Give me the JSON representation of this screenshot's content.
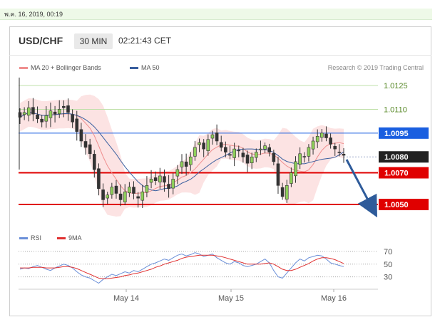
{
  "date_bar": "พ.ค. 16, 2019, 00:19",
  "header": {
    "symbol": "USD/CHF",
    "timeframe": "30 MIN",
    "time": "02:21:43 CET"
  },
  "legend": [
    {
      "label": "MA 20 + Bollinger Bands",
      "color": "#ef8f8f"
    },
    {
      "label": "MA 50",
      "color": "#3a5f9f"
    }
  ],
  "credit": "Research © 2019 Trading Central",
  "rsi_legend": [
    {
      "label": "RSI",
      "color": "#6a8fd8"
    },
    {
      "label": "9MA",
      "color": "#e03030"
    }
  ],
  "chart_data": {
    "type": "candlestick",
    "x_tick_labels": [
      "May 14",
      "May 15",
      "May 16"
    ],
    "price_levels": [
      {
        "value": 1.0125,
        "label": "1.0125",
        "kind": "thin-green"
      },
      {
        "value": 1.011,
        "label": "1.0110",
        "kind": "thin-green"
      },
      {
        "value": 1.0095,
        "label": "1.0095",
        "kind": "resistance",
        "color": "#1a5fe0"
      },
      {
        "value": 1.008,
        "label": "1.0080",
        "kind": "current",
        "color": "#222222"
      },
      {
        "value": 1.007,
        "label": "1.0070",
        "kind": "support",
        "color": "#e00000"
      },
      {
        "value": 1.005,
        "label": "1.0050",
        "kind": "support",
        "color": "#e00000"
      }
    ],
    "price_range": [
      1.0037,
      1.0134
    ],
    "price_path": [
      1.0105,
      1.0108,
      1.0111,
      1.0107,
      1.0104,
      1.0102,
      1.0106,
      1.0109,
      1.0107,
      1.011,
      1.0111,
      1.0108,
      1.0102,
      1.0096,
      1.009,
      1.0086,
      1.0082,
      1.0072,
      1.006,
      1.0053,
      1.0056,
      1.0061,
      1.0057,
      1.0053,
      1.0058,
      1.0061,
      1.0057,
      1.0054,
      1.0058,
      1.0062,
      1.0066,
      1.0065,
      1.0068,
      1.0064,
      1.006,
      1.0066,
      1.0072,
      1.0077,
      1.0074,
      1.008,
      1.0086,
      1.0089,
      1.0085,
      1.0091,
      1.0094,
      1.009,
      1.0086,
      1.0083,
      1.0081,
      1.0085,
      1.0084,
      1.008,
      1.0076,
      1.008,
      1.0083,
      1.0085,
      1.0087,
      1.0083,
      1.0077,
      1.0062,
      1.0055,
      1.0062,
      1.007,
      1.0077,
      1.0082,
      1.008,
      1.0086,
      1.009,
      1.0093,
      1.0095,
      1.0092,
      1.0088,
      1.0085,
      1.0083,
      1.0081
    ],
    "rsi": {
      "levels": [
        70,
        50,
        30
      ],
      "range": [
        15,
        80
      ],
      "values": [
        42,
        44,
        43,
        46,
        48,
        45,
        42,
        40,
        44,
        47,
        50,
        48,
        44,
        38,
        33,
        30,
        28,
        24,
        20,
        26,
        30,
        34,
        32,
        35,
        38,
        36,
        40,
        38,
        42,
        46,
        50,
        52,
        55,
        58,
        56,
        60,
        64,
        66,
        63,
        65,
        68,
        66,
        62,
        64,
        66,
        60,
        56,
        52,
        50,
        54,
        52,
        48,
        46,
        48,
        50,
        54,
        58,
        52,
        40,
        30,
        28,
        36,
        44,
        52,
        58,
        55,
        60,
        62,
        64,
        63,
        58,
        52,
        50,
        48,
        46
      ],
      "ma9": [
        44,
        44,
        44,
        45,
        45,
        45,
        44,
        44,
        44,
        45,
        46,
        46,
        45,
        43,
        40,
        37,
        34,
        31,
        28,
        27,
        27,
        28,
        29,
        30,
        32,
        33,
        35,
        36,
        38,
        40,
        42,
        45,
        47,
        50,
        52,
        54,
        56,
        59,
        61,
        62,
        63,
        64,
        64,
        64,
        64,
        63,
        62,
        60,
        58,
        56,
        54,
        52,
        50,
        50,
        50,
        50,
        51,
        52,
        50,
        46,
        42,
        40,
        40,
        42,
        45,
        48,
        51,
        55,
        58,
        60,
        60,
        59,
        57,
        54,
        51
      ]
    }
  }
}
